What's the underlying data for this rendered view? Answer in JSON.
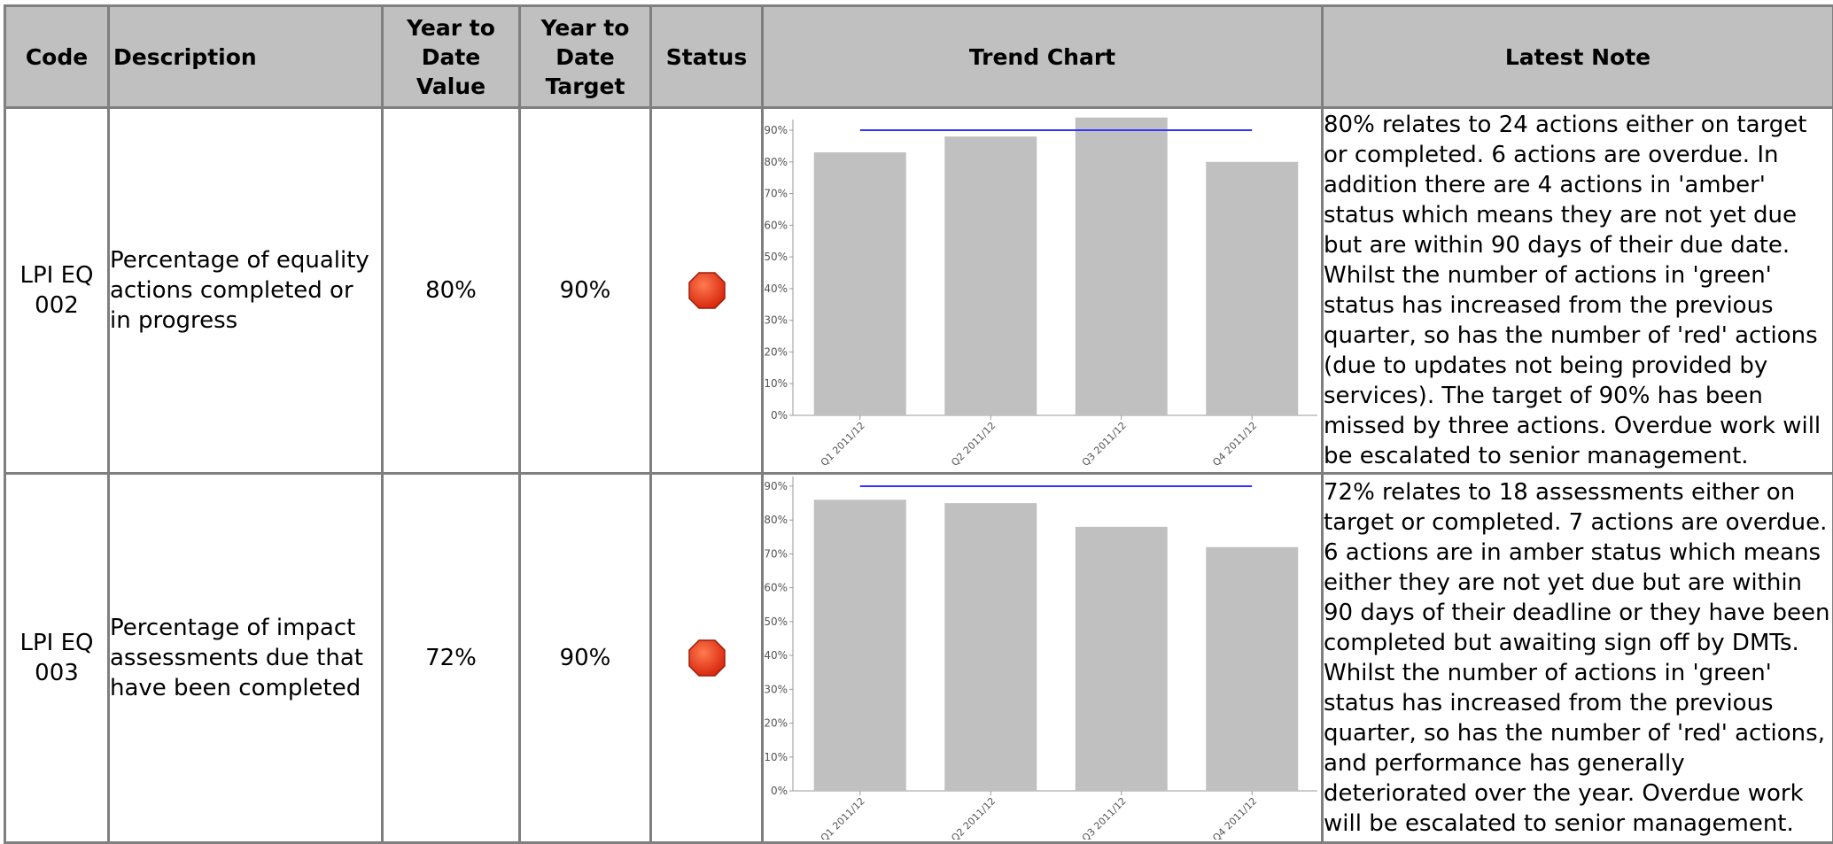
{
  "table": {
    "headers": {
      "code": "Code",
      "description": "Description",
      "ytd_value": "Year to Date Value",
      "ytd_target": "Year to Date Target",
      "status": "Status",
      "trend_chart": "Trend Chart",
      "latest_note": "Latest Note"
    },
    "rows": [
      {
        "code": "LPI EQ 002",
        "description": "Percentage of equality actions completed or in progress",
        "ytd_value": "80%",
        "ytd_target": "90%",
        "status_icon": "red-octagon-icon",
        "note": "80% relates to 24 actions either on target or completed. 6 actions are overdue. In addition there are 4 actions in 'amber' status which means they are not yet due but are within 90 days of their due date. Whilst the number of actions in 'green' status has increased from the previous quarter, so has the number of 'red' actions (due to updates not being provided by services). The target of 90% has been missed by three actions. Overdue work will be escalated to senior management."
      },
      {
        "code": "LPI EQ 003",
        "description": "Percentage of impact assessments due that have been completed",
        "ytd_value": "72%",
        "ytd_target": "90%",
        "status_icon": "red-octagon-icon",
        "note": "72% relates to 18 assessments either on target or completed. 7 actions are overdue. 6 actions are in amber status which means either they are not yet due but are within 90 days of their deadline or they have been completed but awaiting sign off by DMTs. Whilst the number of actions in 'green' status has increased from the previous quarter, so has the number of 'red' actions, and performance has generally deteriorated over the year. Overdue work will be escalated to senior management."
      }
    ]
  },
  "colors": {
    "header_bg": "#c0c0c0",
    "border": "#7f7f7f",
    "bar": "#c0c0c0",
    "target_line": "#3333ff",
    "status_red": "#e8381a"
  },
  "chart_data": [
    {
      "type": "bar",
      "categories": [
        "Q1 2011/12",
        "Q2 2011/12",
        "Q3 2011/12",
        "Q4 2011/12"
      ],
      "values": [
        83,
        88,
        94,
        80
      ],
      "target": 90,
      "ylim": [
        0,
        90
      ],
      "yticks": [
        "0%",
        "10%",
        "20%",
        "30%",
        "40%",
        "50%",
        "60%",
        "70%",
        "80%",
        "90%"
      ],
      "title": "",
      "xlabel": "",
      "ylabel": ""
    },
    {
      "type": "bar",
      "categories": [
        "Q1 2011/12",
        "Q2 2011/12",
        "Q3 2011/12",
        "Q4 2011/12"
      ],
      "values": [
        86,
        85,
        78,
        72
      ],
      "target": 90,
      "ylim": [
        0,
        90
      ],
      "yticks": [
        "0%",
        "10%",
        "20%",
        "30%",
        "40%",
        "50%",
        "60%",
        "70%",
        "80%",
        "90%"
      ],
      "title": "",
      "xlabel": "",
      "ylabel": ""
    }
  ]
}
